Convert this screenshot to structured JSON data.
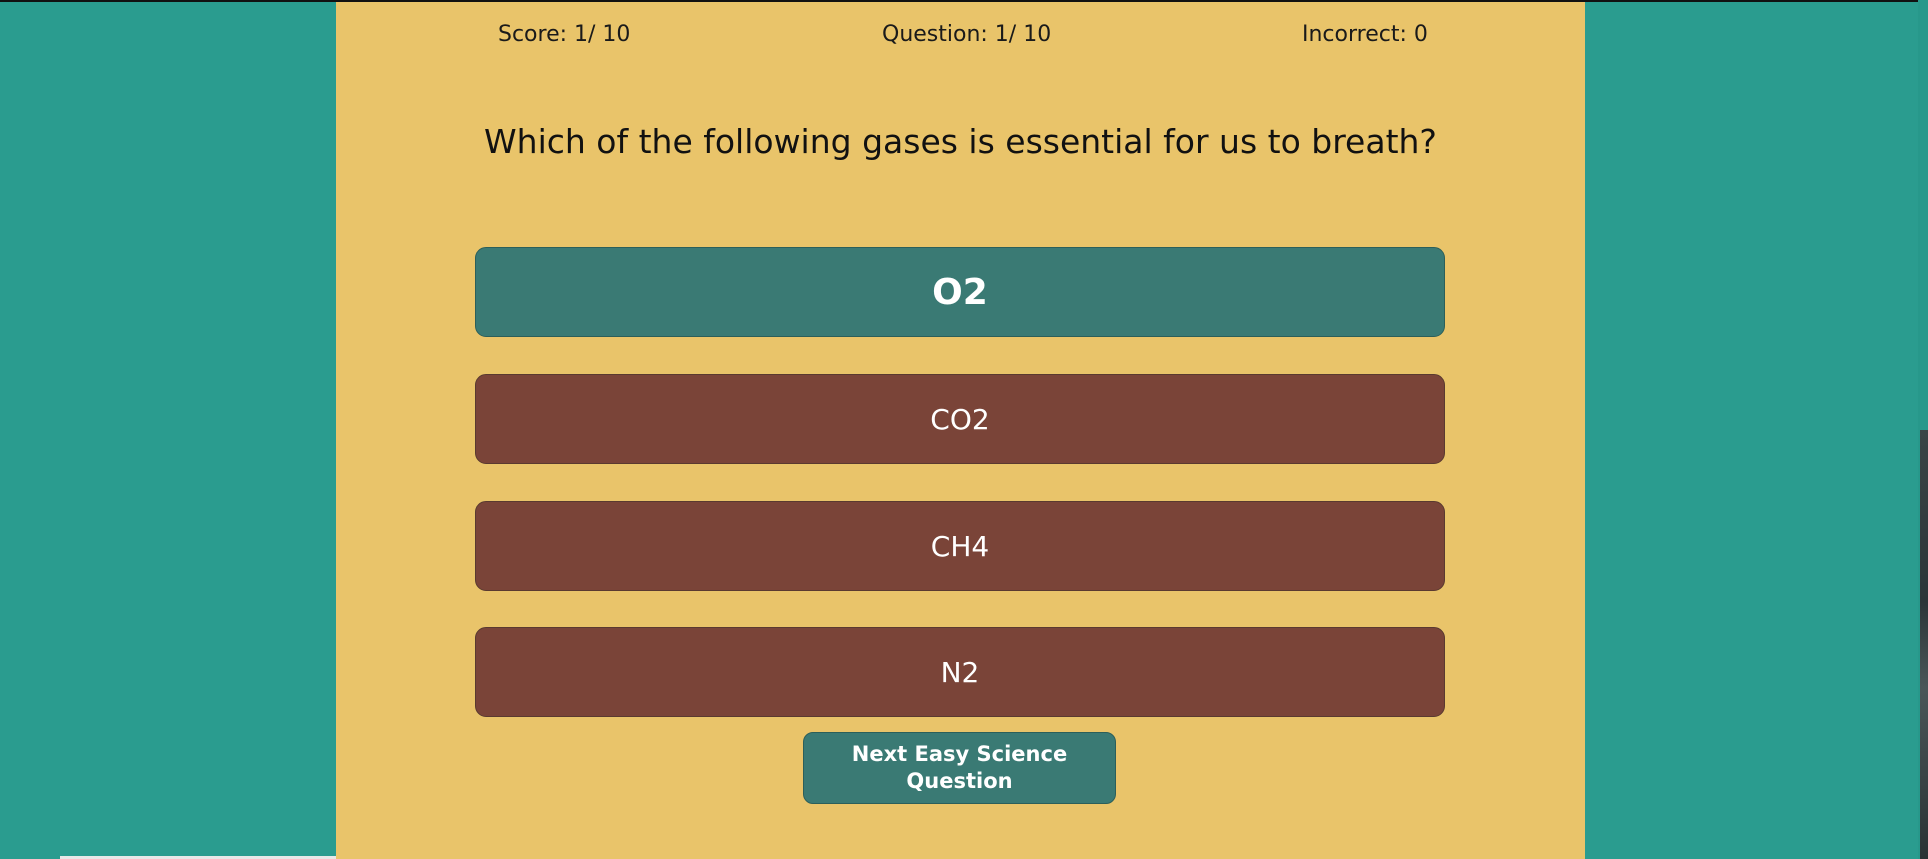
{
  "stats": {
    "score": "Score: 1/ 10",
    "question": "Question: 1/ 10",
    "incorrect": "Incorrect: 0"
  },
  "question_text": "Which of the following gases is essential for us to breath?",
  "answers": [
    {
      "label": "O2",
      "state": "correct"
    },
    {
      "label": "CO2",
      "state": "incorrect"
    },
    {
      "label": "CH4",
      "state": "incorrect"
    },
    {
      "label": "N2",
      "state": "incorrect"
    }
  ],
  "next_button": "Next Easy Science Question",
  "colors": {
    "background": "#2a9c8f",
    "panel": "#e9c46a",
    "correct": "#3a7a74",
    "incorrect": "#7a4438"
  }
}
